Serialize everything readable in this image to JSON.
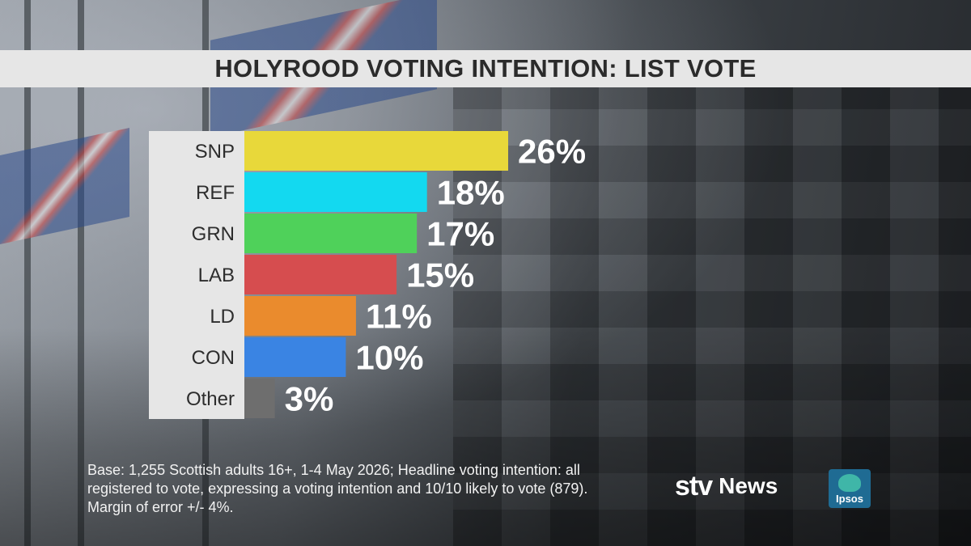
{
  "header": {
    "title": "HOLYROOD VOTING INTENTION: LIST VOTE"
  },
  "chart_data": {
    "type": "bar",
    "orientation": "horizontal",
    "title": "HOLYROOD VOTING INTENTION: LIST VOTE",
    "categories": [
      "SNP",
      "REF",
      "GRN",
      "LAB",
      "LD",
      "CON",
      "Other"
    ],
    "values": [
      26,
      18,
      17,
      15,
      11,
      10,
      3
    ],
    "value_labels": [
      "26%",
      "18%",
      "17%",
      "15%",
      "11%",
      "10%",
      "3%"
    ],
    "colors": [
      "#e8d83a",
      "#13d9f0",
      "#4fd15a",
      "#d64d4f",
      "#ea8b2d",
      "#3a84e3",
      "#6e6e6e"
    ],
    "xlim": [
      0,
      26
    ],
    "grid": false,
    "legend": "none"
  },
  "footnote": {
    "lines": [
      "Base: 1,255 Scottish adults 16+, 1-4 May 2026; Headline voting intention: all",
      "registered to vote, expressing a voting intention and 10/10 likely to vote (879).",
      "Margin of error +/- 4%."
    ]
  },
  "logos": {
    "stv_mark": "stv",
    "stv_news": "News",
    "ipsos": "Ipsos"
  }
}
